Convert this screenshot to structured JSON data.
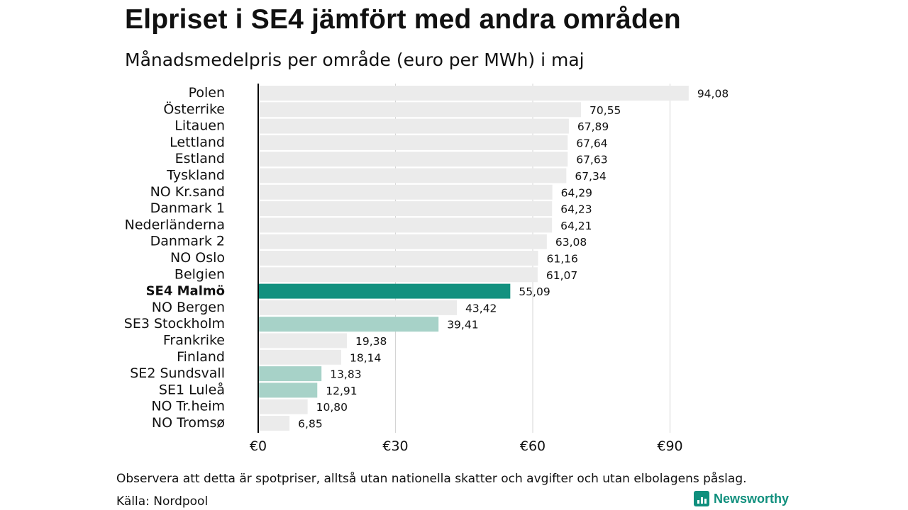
{
  "chart_data": {
    "type": "bar",
    "orientation": "horizontal",
    "title": "Elpriset i SE4 jämfört med andra områden",
    "subtitle": "Månadsmedelpris per område (euro per MWh) i maj",
    "categories": [
      "Polen",
      "Österrike",
      "Litauen",
      "Lettland",
      "Estland",
      "Tyskland",
      "NO Kr.sand",
      "Danmark 1",
      "Nederländerna",
      "Danmark 2",
      "NO Oslo",
      "Belgien",
      "SE4 Malmö",
      "NO Bergen",
      "SE3 Stockholm",
      "Frankrike",
      "Finland",
      "SE2 Sundsvall",
      "SE1 Luleå",
      "NO Tr.heim",
      "NO Tromsø"
    ],
    "values": [
      94.08,
      70.55,
      67.89,
      67.64,
      67.63,
      67.34,
      64.29,
      64.23,
      64.21,
      63.08,
      61.16,
      61.07,
      55.09,
      43.42,
      39.41,
      19.38,
      18.14,
      13.83,
      12.91,
      10.8,
      6.85
    ],
    "value_labels": [
      "94,08",
      "70,55",
      "67,89",
      "67,64",
      "67,63",
      "67,34",
      "64,29",
      "64,23",
      "64,21",
      "63,08",
      "61,16",
      "61,07",
      "55,09",
      "43,42",
      "39,41",
      "19,38",
      "18,14",
      "13,83",
      "12,91",
      "10,80",
      "6,85"
    ],
    "bar_group": [
      "other",
      "other",
      "other",
      "other",
      "other",
      "other",
      "other",
      "other",
      "other",
      "other",
      "other",
      "other",
      "highlight",
      "other",
      "swedish",
      "other",
      "other",
      "swedish",
      "swedish",
      "other",
      "other"
    ],
    "xlim": [
      0,
      100
    ],
    "xticks": [
      0,
      30,
      60,
      90
    ],
    "xtick_labels": [
      "€0",
      "€30",
      "€60",
      "€90"
    ],
    "grid": true,
    "legend": "none"
  },
  "colors": {
    "highlight": "#12917f",
    "swedish": "#a7d2c8",
    "other": "#ebebeb",
    "grid": "#d4d4d4",
    "axis": "#000000"
  },
  "footer": {
    "note": "Observera att detta är spotpriser, alltså utan nationella skatter och avgifter och utan elbolagens påslag.",
    "source": "Källa: Nordpool",
    "brand": "Newsworthy",
    "brand_icon": "bar-chart-icon"
  }
}
